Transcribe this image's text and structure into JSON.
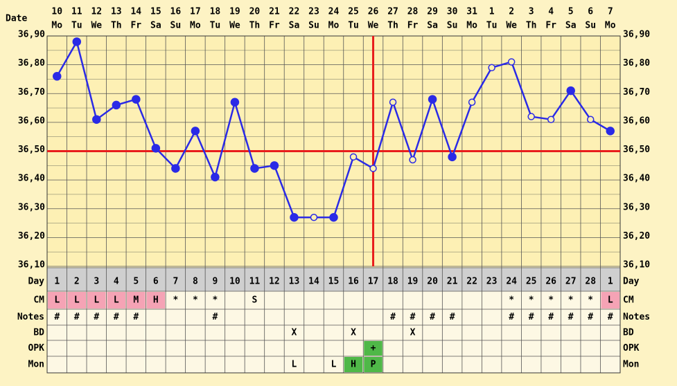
{
  "chart_data": {
    "type": "line",
    "date_label": "Date",
    "categories": [
      "10",
      "11",
      "12",
      "13",
      "14",
      "15",
      "16",
      "17",
      "18",
      "19",
      "20",
      "21",
      "22",
      "23",
      "24",
      "25",
      "26",
      "27",
      "28",
      "29",
      "30",
      "31",
      "1",
      "2",
      "3",
      "4",
      "5",
      "6",
      "7"
    ],
    "weekdays": [
      "Mo",
      "Tu",
      "We",
      "Th",
      "Fr",
      "Sa",
      "Su",
      "Mo",
      "Tu",
      "We",
      "Th",
      "Fr",
      "Sa",
      "Su",
      "Mo",
      "Tu",
      "We",
      "Th",
      "Fr",
      "Sa",
      "Su",
      "Mo",
      "Tu",
      "We",
      "Th",
      "Fr",
      "Sa",
      "Su",
      "Mo"
    ],
    "series": [
      {
        "color": "#2a2ae6",
        "values": [
          36.76,
          36.88,
          36.61,
          36.66,
          36.68,
          36.51,
          36.44,
          36.57,
          36.41,
          36.67,
          36.44,
          36.45,
          36.27,
          36.27,
          36.27,
          36.48,
          36.44,
          36.67,
          36.47,
          36.68,
          36.48,
          36.67,
          36.79,
          36.81,
          36.62,
          36.61,
          36.71,
          36.61,
          36.57
        ],
        "marker_filled": [
          true,
          true,
          true,
          true,
          true,
          true,
          true,
          true,
          true,
          true,
          true,
          true,
          true,
          false,
          true,
          false,
          false,
          false,
          false,
          true,
          true,
          false,
          false,
          false,
          false,
          false,
          true,
          false,
          true
        ]
      }
    ],
    "ylim": [
      36.1,
      36.9
    ],
    "yticks": [
      {
        "value": 36.1,
        "label": "36,10"
      },
      {
        "value": 36.2,
        "label": "36,20"
      },
      {
        "value": 36.3,
        "label": "36,30"
      },
      {
        "value": 36.4,
        "label": "36,40"
      },
      {
        "value": 36.5,
        "label": "36,50"
      },
      {
        "value": 36.6,
        "label": "36,60"
      },
      {
        "value": 36.7,
        "label": "36,70"
      },
      {
        "value": 36.8,
        "label": "36,80"
      },
      {
        "value": 36.9,
        "label": "36,90"
      }
    ],
    "minor_yticks": [
      36.15,
      36.25,
      36.35,
      36.45,
      36.55,
      36.65,
      36.75,
      36.85
    ],
    "grid": true,
    "coverline": 36.5,
    "coverline_color": "#e81c1c",
    "ovulation_category_index": 16
  },
  "table": {
    "rows": [
      {
        "label": "Day",
        "cells": [
          "1",
          "2",
          "3",
          "4",
          "5",
          "6",
          "7",
          "8",
          "9",
          "10",
          "11",
          "12",
          "13",
          "14",
          "15",
          "16",
          "17",
          "18",
          "19",
          "20",
          "21",
          "22",
          "23",
          "24",
          "25",
          "26",
          "27",
          "28",
          "1"
        ]
      },
      {
        "label": "CM",
        "cells": [
          "L",
          "L",
          "L",
          "L",
          "M",
          "H",
          "*",
          "*",
          "*",
          null,
          "S",
          null,
          null,
          null,
          null,
          null,
          null,
          null,
          null,
          null,
          null,
          null,
          null,
          "*",
          "*",
          "*",
          "*",
          "*",
          "L"
        ],
        "highlights": [
          "#f5a3b5",
          "#f5a3b5",
          "#f5a3b5",
          "#f5a3b5",
          "#f5a3b5",
          "#f5a3b5",
          null,
          null,
          null,
          null,
          null,
          null,
          null,
          null,
          null,
          null,
          null,
          null,
          null,
          null,
          null,
          null,
          null,
          null,
          null,
          null,
          null,
          null,
          "#f5a3b5"
        ]
      },
      {
        "label": "Notes",
        "cells": [
          "#",
          "#",
          "#",
          "#",
          "#",
          null,
          null,
          null,
          "#",
          null,
          null,
          null,
          null,
          null,
          null,
          null,
          null,
          "#",
          "#",
          "#",
          "#",
          null,
          null,
          "#",
          "#",
          "#",
          "#",
          "#",
          "#"
        ]
      },
      {
        "label": "BD",
        "cells": [
          null,
          null,
          null,
          null,
          null,
          null,
          null,
          null,
          null,
          null,
          null,
          null,
          "X",
          null,
          null,
          "X",
          null,
          null,
          "X",
          null,
          null,
          null,
          null,
          null,
          null,
          null,
          null,
          null,
          null
        ]
      },
      {
        "label": "OPK",
        "cells": [
          null,
          null,
          null,
          null,
          null,
          null,
          null,
          null,
          null,
          null,
          null,
          null,
          null,
          null,
          null,
          null,
          "+",
          null,
          null,
          null,
          null,
          null,
          null,
          null,
          null,
          null,
          null,
          null,
          null
        ],
        "highlights": [
          null,
          null,
          null,
          null,
          null,
          null,
          null,
          null,
          null,
          null,
          null,
          null,
          null,
          null,
          null,
          null,
          "#4fb848",
          null,
          null,
          null,
          null,
          null,
          null,
          null,
          null,
          null,
          null,
          null,
          null
        ]
      },
      {
        "label": "Mon",
        "cells": [
          null,
          null,
          null,
          null,
          null,
          null,
          null,
          null,
          null,
          null,
          null,
          null,
          "L",
          null,
          "L",
          "H",
          "P",
          null,
          null,
          null,
          null,
          null,
          null,
          null,
          null,
          null,
          null,
          null,
          null
        ],
        "highlights": [
          null,
          null,
          null,
          null,
          null,
          null,
          null,
          null,
          null,
          null,
          null,
          null,
          null,
          null,
          null,
          "#4fb848",
          "#4fb848",
          null,
          null,
          null,
          null,
          null,
          null,
          null,
          null,
          null,
          null,
          null,
          null
        ]
      }
    ]
  }
}
